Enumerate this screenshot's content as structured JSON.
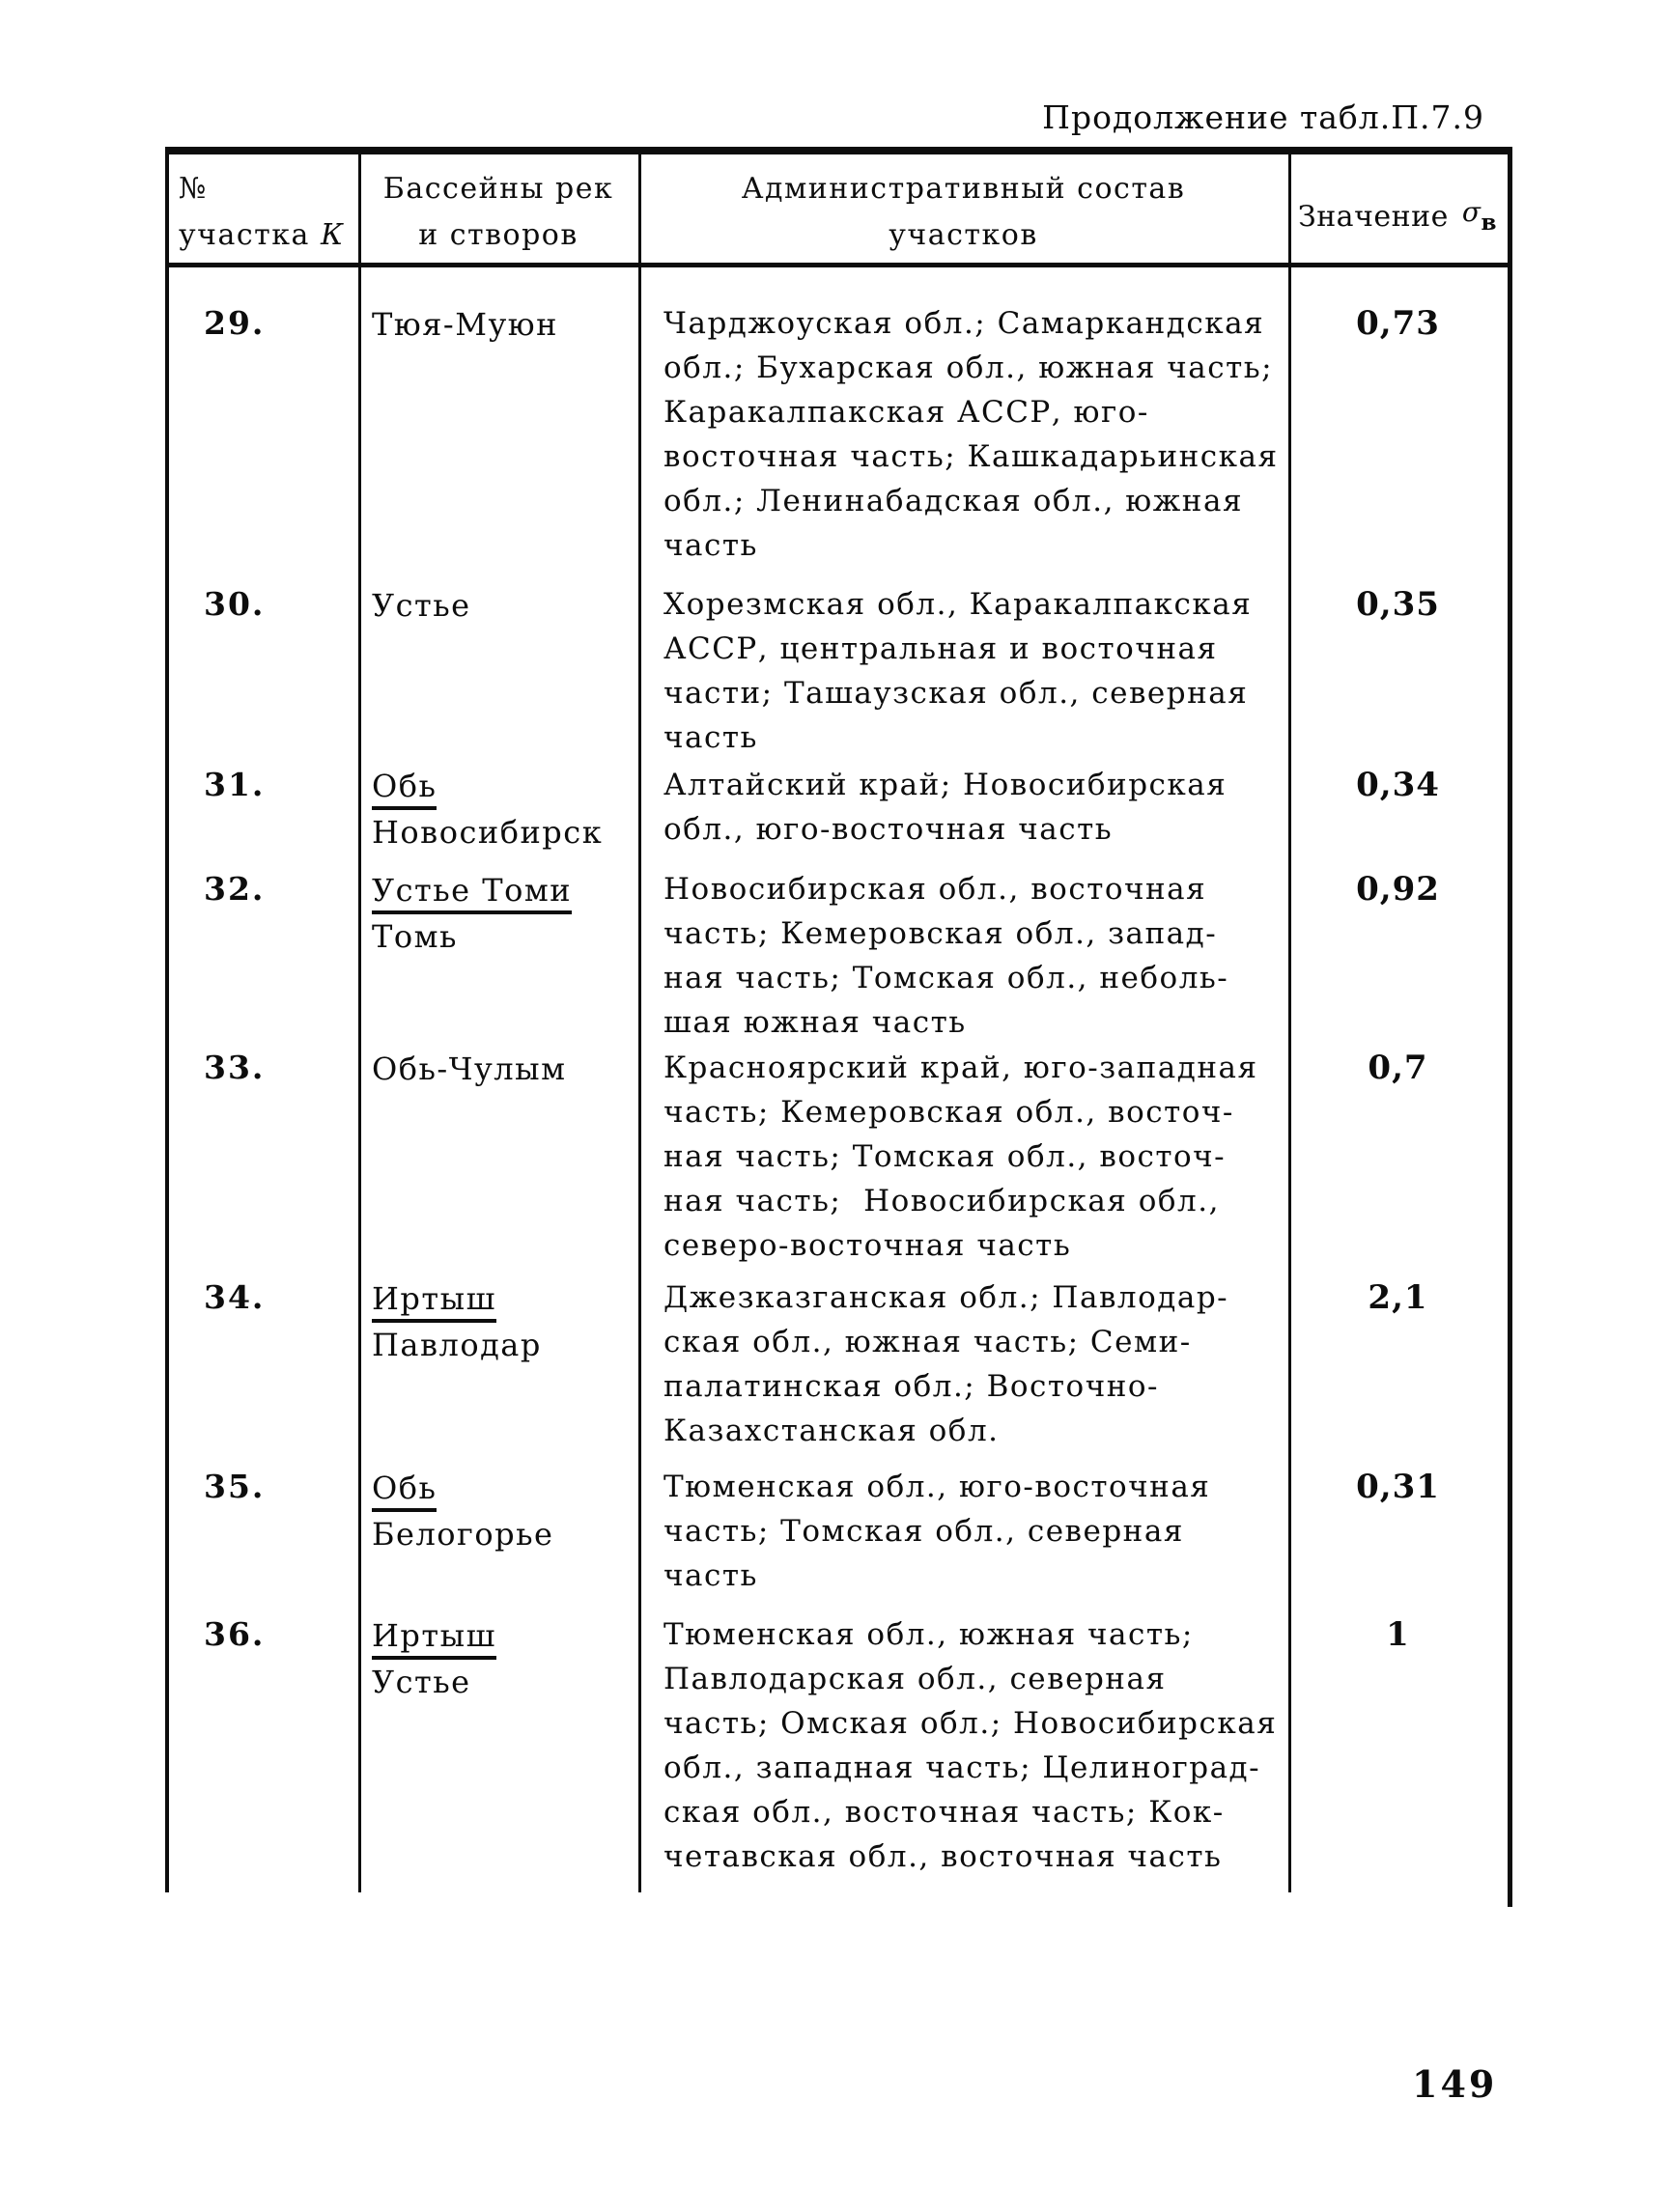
{
  "page": {
    "title": "Продолжение табл.П.7.9",
    "page_number": "149"
  },
  "table": {
    "header": {
      "col1_line1": "№",
      "col1_line2": "участка",
      "col1_var": "К",
      "col2_line1": "Бассейны рек",
      "col2_line2": "и створов",
      "col3_line1": "Административный состав",
      "col3_line2": "участков",
      "col4_label": "Значение",
      "col4_symbol": "σ",
      "col4_sub": "в"
    },
    "rows": [
      {
        "num": "29.",
        "basin": [
          {
            "text": "Тюя-Муюн",
            "underline": false
          }
        ],
        "admin": [
          "Чарджоуская обл.; Самаркандская",
          "обл.; Бухарская обл., южная часть;",
          "Каракалпакская АССР, юго-",
          "восточная часть; Кашкадарьинская",
          "обл.; Ленинабадская обл., южная",
          "часть"
        ],
        "value": "0,73"
      },
      {
        "num": "30.",
        "basin": [
          {
            "text": "Устье",
            "underline": false
          }
        ],
        "admin": [
          "Хорезмская обл., Каракалпакская",
          "АССР, центральная и восточная",
          "части; Ташаузская обл., северная",
          "часть"
        ],
        "value": "0,35"
      },
      {
        "num": "31.",
        "basin": [
          {
            "text": "Обь",
            "underline": true
          },
          {
            "text": "Новосибирск",
            "underline": false
          }
        ],
        "admin": [
          "Алтайский край; Новосибирская",
          "обл., юго-восточная часть"
        ],
        "value": "0,34"
      },
      {
        "num": "32.",
        "basin": [
          {
            "text": "Устье Томи",
            "underline": true
          },
          {
            "text": "Томь",
            "underline": false
          }
        ],
        "admin": [
          "Новосибирская обл., восточная",
          "часть; Кемеровская обл., запад-",
          "ная часть; Томская обл., неболь-",
          "шая южная часть"
        ],
        "value": "0,92"
      },
      {
        "num": "33.",
        "basin": [
          {
            "text": "Обь-Чулым",
            "underline": false
          }
        ],
        "admin": [
          "Красноярский край, юго-западная",
          "часть; Кемеровская обл., восточ-",
          "ная часть; Томская обл., восточ-",
          "ная часть;  Новосибирская обл.,",
          "северо-восточная часть"
        ],
        "value": "0,7"
      },
      {
        "num": "34.",
        "basin": [
          {
            "text": "Иртыш",
            "underline": true
          },
          {
            "text": "Павлодар",
            "underline": false
          }
        ],
        "admin": [
          "Джезказганская обл.; Павлодар-",
          "ская обл., южная часть; Семи-",
          "палатинская обл.; Восточно-",
          "Казахстанская обл."
        ],
        "value": "2,1"
      },
      {
        "num": "35.",
        "basin": [
          {
            "text": "Обь",
            "underline": true
          },
          {
            "text": "Белогорье",
            "underline": false
          }
        ],
        "admin": [
          "Тюменская обл., юго-восточная",
          "часть; Томская обл., северная",
          "часть"
        ],
        "value": "0,31"
      },
      {
        "num": "36.",
        "basin": [
          {
            "text": "Иртыш",
            "underline": true
          },
          {
            "text": "Устье",
            "underline": false
          }
        ],
        "admin": [
          "Тюменская обл., южная часть;",
          "Павлодарская обл., северная",
          "часть; Омская обл.; Новосибирская",
          "обл., западная часть; Целиноград-",
          "ская обл., восточная часть; Кок-",
          "четавская обл., восточная часть"
        ],
        "value": "1"
      }
    ]
  }
}
